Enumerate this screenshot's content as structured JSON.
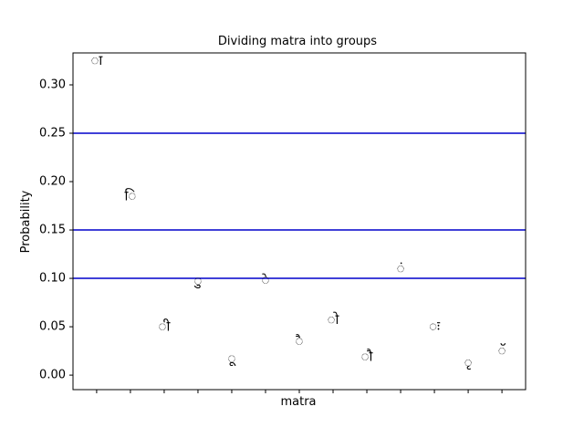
{
  "chart_data": {
    "type": "scatter",
    "title": "Dividing matra into groups",
    "xlabel": "matra",
    "ylabel": "Probability",
    "ylim": [
      -0.015,
      0.333
    ],
    "xlim": [
      -0.7,
      12.7
    ],
    "yticks": [
      0.0,
      0.05,
      0.1,
      0.15,
      0.2,
      0.25,
      0.3
    ],
    "ytick_labels": [
      "0.00",
      "0.05",
      "0.10",
      "0.15",
      "0.20",
      "0.25",
      "0.30"
    ],
    "xticks": [
      0,
      1,
      2,
      3,
      4,
      5,
      6,
      7,
      8,
      9,
      10,
      11,
      12
    ],
    "grid": false,
    "hlines": [
      {
        "y": 0.25,
        "color": "#0000cc"
      },
      {
        "y": 0.15,
        "color": "#0000cc"
      },
      {
        "y": 0.1,
        "color": "#0000cc"
      }
    ],
    "points": [
      {
        "x": 0,
        "y": 0.325,
        "label": "ा"
      },
      {
        "x": 1,
        "y": 0.185,
        "label": "ि"
      },
      {
        "x": 2,
        "y": 0.05,
        "label": "ी"
      },
      {
        "x": 3,
        "y": 0.097,
        "label": "ु"
      },
      {
        "x": 4,
        "y": 0.017,
        "label": "ू"
      },
      {
        "x": 5,
        "y": 0.098,
        "label": "े"
      },
      {
        "x": 6,
        "y": 0.035,
        "label": "ै"
      },
      {
        "x": 7,
        "y": 0.057,
        "label": "ो"
      },
      {
        "x": 8,
        "y": 0.019,
        "label": "ौ"
      },
      {
        "x": 9,
        "y": 0.11,
        "label": "ं"
      },
      {
        "x": 10,
        "y": 0.05,
        "label": "ः"
      },
      {
        "x": 11,
        "y": 0.013,
        "label": "ृ"
      },
      {
        "x": 12,
        "y": 0.025,
        "label": "ॅ"
      }
    ],
    "colors": {
      "hline": "#0000cc",
      "text": "#000000",
      "axes": "#000000"
    }
  }
}
